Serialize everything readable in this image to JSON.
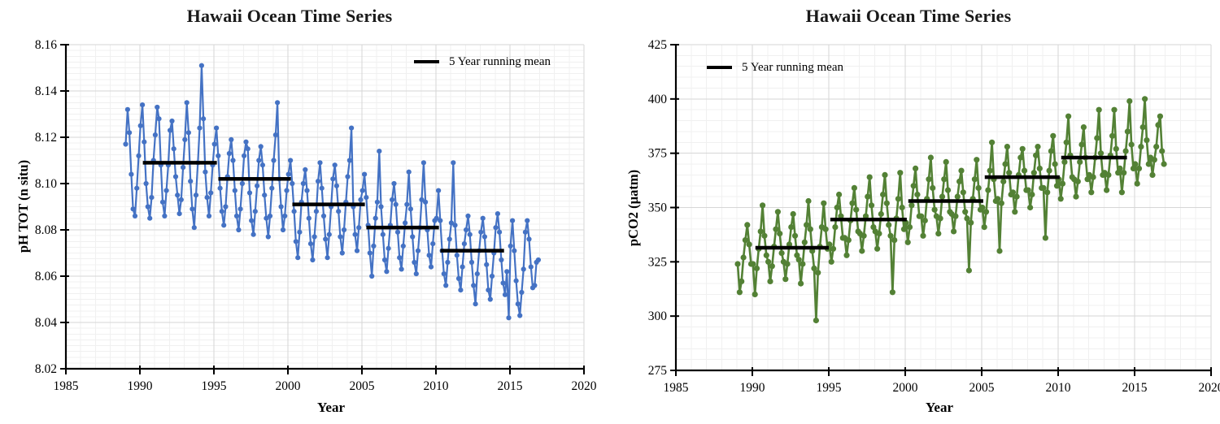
{
  "page": {
    "background": "#ffffff"
  },
  "chart_data": [
    {
      "type": "line",
      "title": "Hawaii Ocean Time Series",
      "xlabel": "Year",
      "ylabel": "pH TOT (n situ)",
      "legend_label": "5 Year running mean",
      "legend_position": "top-right-inside",
      "series_name": "pH TOT monthly observations",
      "series_color": "#4472C4",
      "running_mean_color": "#000000",
      "grid": true,
      "xlim": [
        1985,
        2020
      ],
      "ylim": [
        8.02,
        8.16
      ],
      "x_tick_values": [
        1985,
        1990,
        1995,
        2000,
        2005,
        2010,
        2015,
        2020
      ],
      "x_tick_labels": [
        "1985",
        "1990",
        "1995",
        "2000",
        "2005",
        "2010",
        "2015",
        "2020"
      ],
      "y_tick_values": [
        8.02,
        8.04,
        8.06,
        8.08,
        8.1,
        8.12,
        8.14,
        8.16
      ],
      "y_tick_labels": [
        "8.02",
        "8.04",
        "8.06",
        "8.08",
        "8.10",
        "8.12",
        "8.14",
        "8.16"
      ],
      "x_minor_step": 1,
      "x_major_step": 5,
      "y_minor_step": 0.0025,
      "sample_offsets": [
        0.04,
        0.17,
        0.29,
        0.42,
        0.54,
        0.67,
        0.79,
        0.92
      ],
      "annual_samples": [
        {
          "year": 1989,
          "values": [
            8.117,
            8.132,
            8.122,
            8.104,
            8.089,
            8.086,
            8.098,
            8.112
          ]
        },
        {
          "year": 1990,
          "values": [
            8.125,
            8.134,
            8.118,
            8.1,
            8.09,
            8.085,
            8.094,
            8.11
          ]
        },
        {
          "year": 1991,
          "values": [
            8.121,
            8.133,
            8.128,
            8.108,
            8.092,
            8.086,
            8.097,
            8.108
          ]
        },
        {
          "year": 1992,
          "values": [
            8.123,
            8.127,
            8.115,
            8.103,
            8.095,
            8.087,
            8.093,
            8.107
          ]
        },
        {
          "year": 1993,
          "values": [
            8.119,
            8.135,
            8.122,
            8.101,
            8.089,
            8.081,
            8.095,
            8.109
          ]
        },
        {
          "year": 1994,
          "values": [
            8.124,
            8.151,
            8.128,
            8.105,
            8.094,
            8.086,
            8.096,
            8.108
          ]
        },
        {
          "year": 1995,
          "values": [
            8.117,
            8.124,
            8.112,
            8.098,
            8.088,
            8.082,
            8.09,
            8.103
          ]
        },
        {
          "year": 1996,
          "values": [
            8.113,
            8.119,
            8.11,
            8.097,
            8.086,
            8.08,
            8.089,
            8.1
          ]
        },
        {
          "year": 1997,
          "values": [
            8.112,
            8.118,
            8.115,
            8.096,
            8.084,
            8.078,
            8.088,
            8.099
          ]
        },
        {
          "year": 1998,
          "values": [
            8.11,
            8.116,
            8.108,
            8.095,
            8.085,
            8.077,
            8.086,
            8.098
          ]
        },
        {
          "year": 1999,
          "values": [
            8.11,
            8.121,
            8.135,
            8.102,
            8.09,
            8.08,
            8.086,
            8.097
          ]
        },
        {
          "year": 2000,
          "values": [
            8.104,
            8.11,
            8.1,
            8.088,
            8.075,
            8.068,
            8.079,
            8.092
          ]
        },
        {
          "year": 2001,
          "values": [
            8.1,
            8.106,
            8.097,
            8.085,
            8.074,
            8.067,
            8.077,
            8.088
          ]
        },
        {
          "year": 2002,
          "values": [
            8.101,
            8.109,
            8.098,
            8.086,
            8.076,
            8.068,
            8.078,
            8.09
          ]
        },
        {
          "year": 2003,
          "values": [
            8.102,
            8.108,
            8.099,
            8.088,
            8.077,
            8.07,
            8.08,
            8.092
          ]
        },
        {
          "year": 2004,
          "values": [
            8.103,
            8.11,
            8.124,
            8.09,
            8.078,
            8.071,
            8.081,
            8.093
          ]
        },
        {
          "year": 2005,
          "values": [
            8.097,
            8.104,
            8.094,
            8.082,
            8.07,
            8.06,
            8.073,
            8.085
          ]
        },
        {
          "year": 2006,
          "values": [
            8.092,
            8.114,
            8.09,
            8.078,
            8.067,
            8.062,
            8.072,
            8.082
          ]
        },
        {
          "year": 2007,
          "values": [
            8.093,
            8.1,
            8.091,
            8.079,
            8.068,
            8.063,
            8.073,
            8.083
          ]
        },
        {
          "year": 2008,
          "values": [
            8.091,
            8.105,
            8.089,
            8.077,
            8.066,
            8.061,
            8.071,
            8.081
          ]
        },
        {
          "year": 2009,
          "values": [
            8.093,
            8.109,
            8.092,
            8.08,
            8.069,
            8.064,
            8.074,
            8.084
          ]
        },
        {
          "year": 2010,
          "values": [
            8.085,
            8.097,
            8.084,
            8.071,
            8.061,
            8.056,
            8.066,
            8.076
          ]
        },
        {
          "year": 2011,
          "values": [
            8.083,
            8.109,
            8.082,
            8.069,
            8.059,
            8.054,
            8.064,
            8.074
          ]
        },
        {
          "year": 2012,
          "values": [
            8.08,
            8.086,
            8.078,
            8.066,
            8.056,
            8.048,
            8.061,
            8.071
          ]
        },
        {
          "year": 2013,
          "values": [
            8.079,
            8.085,
            8.077,
            8.065,
            8.054,
            8.05,
            8.06,
            8.07
          ]
        },
        {
          "year": 2014,
          "values": [
            8.081,
            8.087,
            8.079,
            8.067,
            8.057,
            8.052,
            8.062,
            8.042
          ]
        },
        {
          "year": 2015,
          "values": [
            8.073,
            8.084,
            8.071,
            8.058,
            8.048,
            8.043,
            8.053,
            8.063
          ]
        },
        {
          "year": 2016,
          "values": [
            8.079,
            8.084,
            8.076,
            8.064,
            8.055,
            8.056,
            8.066,
            8.067
          ]
        }
      ],
      "running_mean_segments": [
        [
          1990.2,
          1995.2,
          8.109
        ],
        [
          1995.3,
          2000.2,
          8.102
        ],
        [
          2000.3,
          2005.2,
          8.091
        ],
        [
          2005.3,
          2010.2,
          8.081
        ],
        [
          2010.3,
          2014.6,
          8.071
        ]
      ]
    },
    {
      "type": "line",
      "title": "Hawaii Ocean Time Series",
      "xlabel": "Year",
      "ylabel": "pCO2 (µatm)",
      "legend_label": "5 Year running mean",
      "legend_position": "top-left-inside",
      "series_name": "pCO2 monthly observations",
      "series_color": "#538135",
      "running_mean_color": "#000000",
      "grid": true,
      "xlim": [
        1985,
        2020
      ],
      "ylim": [
        275,
        425
      ],
      "x_tick_values": [
        1985,
        1990,
        1995,
        2000,
        2005,
        2010,
        2015,
        2020
      ],
      "x_tick_labels": [
        "1985",
        "1990",
        "1995",
        "2000",
        "2005",
        "2010",
        "2015",
        "2020"
      ],
      "y_tick_values": [
        275,
        300,
        325,
        350,
        375,
        400,
        425
      ],
      "y_tick_labels": [
        "275",
        "300",
        "325",
        "350",
        "375",
        "400",
        "425"
      ],
      "x_minor_step": 1,
      "x_major_step": 5,
      "y_minor_step": 5,
      "sample_offsets": [
        0.04,
        0.17,
        0.29,
        0.42,
        0.54,
        0.67,
        0.79,
        0.92
      ],
      "annual_samples": [
        {
          "year": 1989,
          "values": [
            324,
            311,
            316,
            327,
            335,
            342,
            333,
            324
          ]
        },
        {
          "year": 1990,
          "values": [
            324,
            310,
            322,
            331,
            339,
            351,
            337,
            328
          ]
        },
        {
          "year": 1991,
          "values": [
            325,
            316,
            323,
            332,
            340,
            348,
            338,
            329
          ]
        },
        {
          "year": 1992,
          "values": [
            325,
            317,
            324,
            333,
            341,
            347,
            337,
            328
          ]
        },
        {
          "year": 1993,
          "values": [
            326,
            315,
            324,
            334,
            342,
            353,
            340,
            330
          ]
        },
        {
          "year": 1994,
          "values": [
            322,
            298,
            320,
            332,
            341,
            352,
            340,
            331
          ]
        },
        {
          "year": 1995,
          "values": [
            333,
            325,
            331,
            341,
            350,
            356,
            346,
            336
          ]
        },
        {
          "year": 1996,
          "values": [
            336,
            328,
            335,
            344,
            352,
            359,
            349,
            339
          ]
        },
        {
          "year": 1997,
          "values": [
            338,
            330,
            337,
            346,
            355,
            364,
            351,
            341
          ]
        },
        {
          "year": 1998,
          "values": [
            339,
            331,
            338,
            347,
            356,
            365,
            352,
            342
          ]
        },
        {
          "year": 1999,
          "values": [
            337,
            311,
            335,
            345,
            354,
            366,
            350,
            340
          ]
        },
        {
          "year": 2000,
          "values": [
            343,
            334,
            341,
            351,
            360,
            368,
            356,
            346
          ]
        },
        {
          "year": 2001,
          "values": [
            346,
            337,
            344,
            354,
            363,
            373,
            359,
            349
          ]
        },
        {
          "year": 2002,
          "values": [
            346,
            338,
            345,
            355,
            363,
            371,
            358,
            348
          ]
        },
        {
          "year": 2003,
          "values": [
            347,
            339,
            346,
            355,
            362,
            367,
            357,
            348
          ]
        },
        {
          "year": 2004,
          "values": [
            345,
            321,
            343,
            354,
            363,
            372,
            359,
            349
          ]
        },
        {
          "year": 2005,
          "values": [
            350,
            341,
            348,
            358,
            367,
            380,
            363,
            353
          ]
        },
        {
          "year": 2006,
          "values": [
            354,
            330,
            352,
            362,
            370,
            378,
            366,
            356
          ]
        },
        {
          "year": 2007,
          "values": [
            357,
            348,
            355,
            365,
            373,
            377,
            367,
            358
          ]
        },
        {
          "year": 2008,
          "values": [
            358,
            350,
            356,
            366,
            374,
            378,
            368,
            359
          ]
        },
        {
          "year": 2009,
          "values": [
            359,
            336,
            357,
            367,
            376,
            383,
            370,
            360
          ]
        },
        {
          "year": 2010,
          "values": [
            363,
            354,
            361,
            371,
            380,
            392,
            374,
            364
          ]
        },
        {
          "year": 2011,
          "values": [
            363,
            355,
            362,
            371,
            379,
            387,
            373,
            363
          ]
        },
        {
          "year": 2012,
          "values": [
            365,
            357,
            364,
            373,
            382,
            395,
            375,
            365
          ]
        },
        {
          "year": 2013,
          "values": [
            366,
            358,
            365,
            374,
            383,
            395,
            377,
            366
          ]
        },
        {
          "year": 2014,
          "values": [
            368,
            357,
            366,
            376,
            385,
            399,
            379,
            368
          ]
        },
        {
          "year": 2015,
          "values": [
            370,
            361,
            368,
            378,
            387,
            400,
            381,
            370
          ]
        },
        {
          "year": 2016,
          "values": [
            373,
            365,
            372,
            378,
            388,
            392,
            376,
            370
          ]
        }
      ],
      "running_mean_segments": [
        [
          1990.2,
          1995.0,
          331.5
        ],
        [
          1995.1,
          2000.1,
          344.5
        ],
        [
          2000.2,
          2005.1,
          353.0
        ],
        [
          2005.2,
          2010.1,
          364.0
        ],
        [
          2010.2,
          2014.5,
          373.0
        ]
      ]
    }
  ]
}
